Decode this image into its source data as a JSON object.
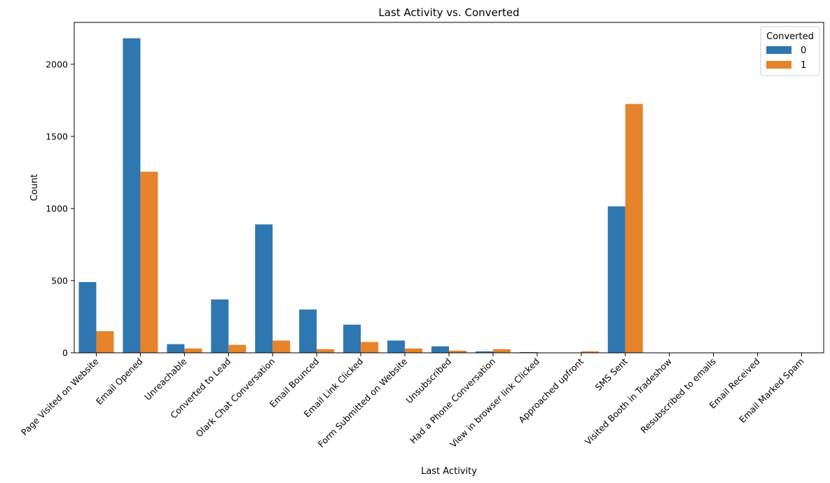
{
  "chart_data": {
    "type": "bar",
    "title": "Last Activity vs. Converted",
    "xlabel": "Last Activity",
    "ylabel": "Count",
    "ylim": [
      0,
      2290
    ],
    "yticks": [
      0,
      500,
      1000,
      1500,
      2000
    ],
    "categories": [
      "Page Visited on Website",
      "Email Opened",
      "Unreachable",
      "Converted to Lead",
      "Olark Chat Conversation",
      "Email Bounced",
      "Email Link Clicked",
      "Form Submitted on Website",
      "Unsubscribed",
      "Had a Phone Conversation",
      "View in browser link Clicked",
      "Approached upfront",
      "SMS Sent",
      "Visited Booth in Tradeshow",
      "Resubscribed to emails",
      "Email Received",
      "Email Marked Spam"
    ],
    "series": [
      {
        "name": "0",
        "color": "#2e77b0",
        "values": [
          490,
          2180,
          60,
          370,
          890,
          300,
          195,
          85,
          45,
          10,
          5,
          0,
          1015,
          0,
          0,
          0,
          0
        ]
      },
      {
        "name": "1",
        "color": "#e6832b",
        "values": [
          150,
          1255,
          30,
          55,
          85,
          25,
          75,
          30,
          15,
          25,
          0,
          10,
          1725,
          0,
          0,
          0,
          0
        ]
      }
    ],
    "legend": {
      "title": "Converted",
      "placement": "top-right"
    },
    "grid": false
  }
}
